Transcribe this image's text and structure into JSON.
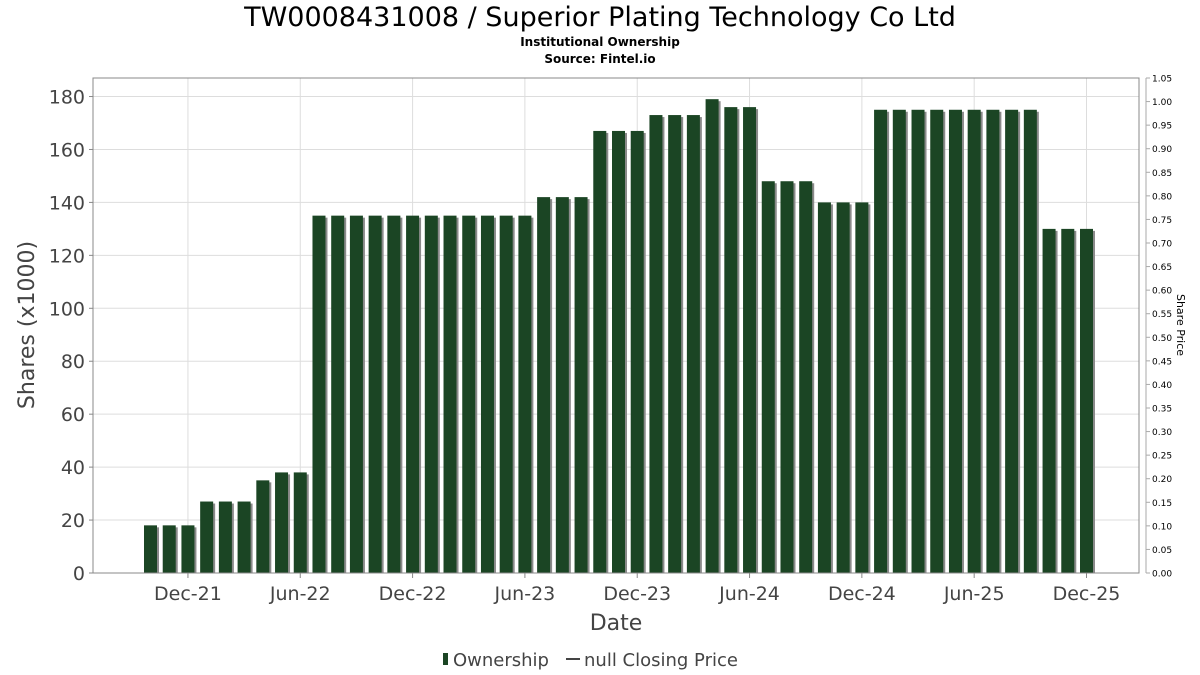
{
  "chart_data": {
    "type": "bar",
    "title": "TW0008431008 / Superior Plating Technology Co Ltd",
    "subtitle": "Institutional Ownership",
    "source": "Source: Fintel.io",
    "xlabel": "Date",
    "ylabel": "Shares (x1000)",
    "y2label": "Share Price",
    "ylim": [
      0,
      187
    ],
    "y2lim": [
      0,
      1.05
    ],
    "yticks": [
      0,
      20,
      40,
      60,
      80,
      100,
      120,
      140,
      160,
      180
    ],
    "y2ticks": [
      "0.00",
      "0.05",
      "0.10",
      "0.15",
      "0.20",
      "0.25",
      "0.30",
      "0.35",
      "0.40",
      "0.45",
      "0.50",
      "0.55",
      "0.60",
      "0.65",
      "0.70",
      "0.75",
      "0.80",
      "0.85",
      "0.90",
      "0.95",
      "1.00",
      "1.05"
    ],
    "xticks": [
      {
        "label": "Dec-21",
        "index": 2
      },
      {
        "label": "Jun-22",
        "index": 8
      },
      {
        "label": "Dec-22",
        "index": 14
      },
      {
        "label": "Jun-23",
        "index": 20
      },
      {
        "label": "Dec-23",
        "index": 26
      },
      {
        "label": "Jun-24",
        "index": 32
      },
      {
        "label": "Dec-24",
        "index": 38
      },
      {
        "label": "Jun-25",
        "index": 44
      },
      {
        "label": "Dec-25",
        "index": 50
      }
    ],
    "first_period": "Oct-21",
    "series": [
      {
        "name": "Ownership",
        "color": "#1b4524",
        "values": [
          18,
          18,
          18,
          27,
          27,
          27,
          35,
          38,
          38,
          135,
          135,
          135,
          135,
          135,
          135,
          135,
          135,
          135,
          135,
          135,
          135,
          142,
          142,
          142,
          167,
          167,
          167,
          173,
          173,
          173,
          179,
          176,
          176,
          148,
          148,
          148,
          140,
          140,
          140,
          175,
          175,
          175,
          175,
          175,
          175,
          175,
          175,
          175,
          130,
          130,
          130
        ]
      },
      {
        "name": "null Closing Price",
        "color": "#444444",
        "values": []
      }
    ],
    "legend": "bottom",
    "grid": true
  }
}
